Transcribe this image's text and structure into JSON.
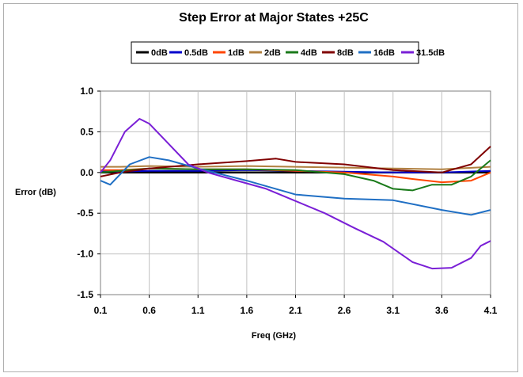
{
  "chart_data": {
    "type": "line",
    "title": "Step Error at Major States +25C",
    "xlabel": "Freq (GHz)",
    "ylabel": "Error (dB)",
    "xlim": [
      0.1,
      4.1
    ],
    "ylim": [
      -1.5,
      1.0
    ],
    "x_ticks": [
      0.1,
      0.6,
      1.1,
      1.6,
      2.1,
      2.6,
      3.1,
      3.6,
      4.1
    ],
    "x_tick_labels": [
      "0.1",
      "0.6",
      "1.1",
      "1.6",
      "2.1",
      "2.6",
      "3.1",
      "3.6",
      "4.1"
    ],
    "y_ticks": [
      -1.5,
      -1.0,
      -0.5,
      0.0,
      0.5,
      1.0
    ],
    "y_tick_labels": [
      "-1.5",
      "-1.0",
      "-0.5",
      "0.0",
      "0.5",
      "1.0"
    ],
    "grid": true,
    "legend_position": "top",
    "series": [
      {
        "name": "0dB",
        "color": "#000000",
        "x": [
          0.1,
          4.1
        ],
        "y": [
          0.0,
          0.0
        ]
      },
      {
        "name": "0.5dB",
        "color": "#0000cc",
        "x": [
          0.1,
          0.3,
          0.6,
          1.1,
          1.6,
          2.1,
          2.6,
          3.1,
          3.6,
          4.1
        ],
        "y": [
          0.02,
          0.01,
          0.02,
          0.02,
          0.03,
          0.02,
          0.01,
          0.0,
          0.0,
          0.02
        ]
      },
      {
        "name": "1dB",
        "color": "#ff4500",
        "x": [
          0.1,
          0.3,
          0.6,
          1.1,
          1.6,
          2.1,
          2.6,
          3.1,
          3.3,
          3.6,
          3.9,
          4.1
        ],
        "y": [
          0.03,
          0.03,
          0.05,
          0.04,
          0.04,
          0.02,
          0.0,
          -0.05,
          -0.08,
          -0.12,
          -0.1,
          0.0
        ]
      },
      {
        "name": "2dB",
        "color": "#b08040",
        "x": [
          0.1,
          0.3,
          0.6,
          1.1,
          1.6,
          2.1,
          2.6,
          3.1,
          3.6,
          4.1
        ],
        "y": [
          0.07,
          0.07,
          0.08,
          0.07,
          0.08,
          0.07,
          0.06,
          0.05,
          0.04,
          0.07
        ]
      },
      {
        "name": "4dB",
        "color": "#1a7a1a",
        "x": [
          0.1,
          0.3,
          0.6,
          1.1,
          1.6,
          2.1,
          2.6,
          2.9,
          3.1,
          3.3,
          3.5,
          3.7,
          3.9,
          4.1
        ],
        "y": [
          0.0,
          0.02,
          0.05,
          0.04,
          0.04,
          0.03,
          -0.02,
          -0.1,
          -0.2,
          -0.22,
          -0.15,
          -0.15,
          -0.05,
          0.15
        ]
      },
      {
        "name": "8dB",
        "color": "#800000",
        "x": [
          0.1,
          0.3,
          0.6,
          1.1,
          1.6,
          1.9,
          2.1,
          2.6,
          3.1,
          3.6,
          3.9,
          4.1
        ],
        "y": [
          -0.05,
          0.0,
          0.05,
          0.1,
          0.14,
          0.17,
          0.13,
          0.1,
          0.03,
          0.0,
          0.1,
          0.32
        ]
      },
      {
        "name": "16dB",
        "color": "#1f6fc4",
        "x": [
          0.1,
          0.2,
          0.4,
          0.6,
          0.8,
          1.1,
          1.6,
          2.1,
          2.6,
          3.1,
          3.6,
          3.9,
          4.1
        ],
        "y": [
          -0.1,
          -0.15,
          0.1,
          0.19,
          0.15,
          0.05,
          -0.1,
          -0.27,
          -0.32,
          -0.34,
          -0.46,
          -0.52,
          -0.46
        ]
      },
      {
        "name": "31.5dB",
        "color": "#7a1fd6",
        "x": [
          0.1,
          0.2,
          0.35,
          0.5,
          0.6,
          0.8,
          1.0,
          1.2,
          1.5,
          1.8,
          2.1,
          2.4,
          2.7,
          3.0,
          3.3,
          3.5,
          3.7,
          3.9,
          4.0,
          4.1
        ],
        "y": [
          0.0,
          0.15,
          0.5,
          0.66,
          0.6,
          0.35,
          0.1,
          0.0,
          -0.1,
          -0.2,
          -0.35,
          -0.5,
          -0.68,
          -0.85,
          -1.1,
          -1.18,
          -1.17,
          -1.05,
          -0.9,
          -0.84
        ]
      }
    ]
  }
}
